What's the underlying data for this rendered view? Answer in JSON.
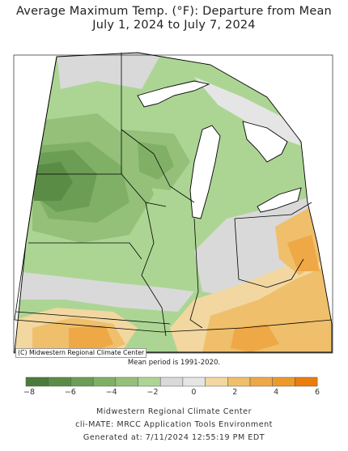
{
  "title_line1": "Average Maximum Temp. (°F): Departure from Mean",
  "title_line2": "July 1, 2024 to July 7, 2024",
  "mean_note": "Mean period is 1991-2020.",
  "copyright": "(C) Midwestern Regional Climate Center",
  "legend": {
    "colors": [
      "#4b7b3a",
      "#5a8c46",
      "#6c9d55",
      "#80b066",
      "#94c07a",
      "#acd594",
      "#d9d9d9",
      "#e5e5e5",
      "#f2d7a0",
      "#efbf6b",
      "#eea846",
      "#ec9a2a",
      "#ea7d0c"
    ],
    "ticks": [
      "−8",
      "−6",
      "−4",
      "−2",
      "0",
      "2",
      "4",
      "6"
    ]
  },
  "footer": {
    "line1": "Midwestern Regional Climate Center",
    "line2": "cli-MATE: MRCC Application Tools Environment",
    "line3": "Generated at: 7/11/2024 12:55:19 PM EDT"
  }
}
